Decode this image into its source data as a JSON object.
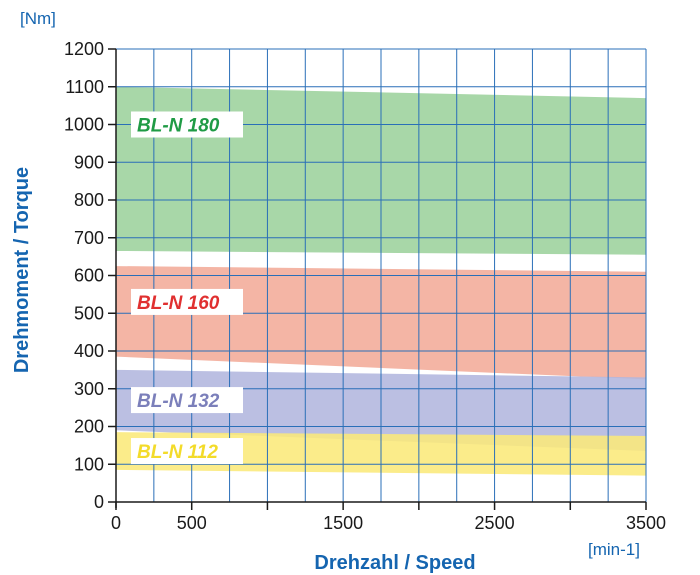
{
  "chart_data": {
    "type": "area",
    "title": "",
    "xlabel": "Drehzahl / Speed",
    "ylabel": "Drehmoment / Torque",
    "x_unit": "[min-1]",
    "y_unit": "[Nm]",
    "xlim": [
      0,
      3500
    ],
    "ylim": [
      0,
      1200
    ],
    "x_tick_labels": [
      0,
      500,
      1500,
      2500,
      3500
    ],
    "y_ticks": [
      0,
      100,
      200,
      300,
      400,
      500,
      600,
      700,
      800,
      900,
      1000,
      1100,
      1200
    ],
    "grid": true,
    "series": [
      {
        "name": "BL-N 180",
        "color": "#9cd19c",
        "text_color": "#1f9b45",
        "x": [
          0,
          3500
        ],
        "upper": [
          1100,
          1070
        ],
        "lower": [
          665,
          655
        ]
      },
      {
        "name": "BL-N 160",
        "color": "#f2ab98",
        "text_color": "#e03030",
        "x": [
          0,
          3500
        ],
        "upper": [
          625,
          610
        ],
        "lower": [
          385,
          325
        ]
      },
      {
        "name": "BL-N 132",
        "color": "#b2b6de",
        "text_color": "#7b7fba",
        "x": [
          0,
          3500
        ],
        "upper": [
          350,
          330
        ],
        "lower": [
          190,
          135
        ]
      },
      {
        "name": "BL-N 112",
        "color": "#fbe97a",
        "text_color": "#f3db2a",
        "x": [
          0,
          3500
        ],
        "upper": [
          185,
          175
        ],
        "lower": [
          85,
          70
        ]
      }
    ]
  }
}
